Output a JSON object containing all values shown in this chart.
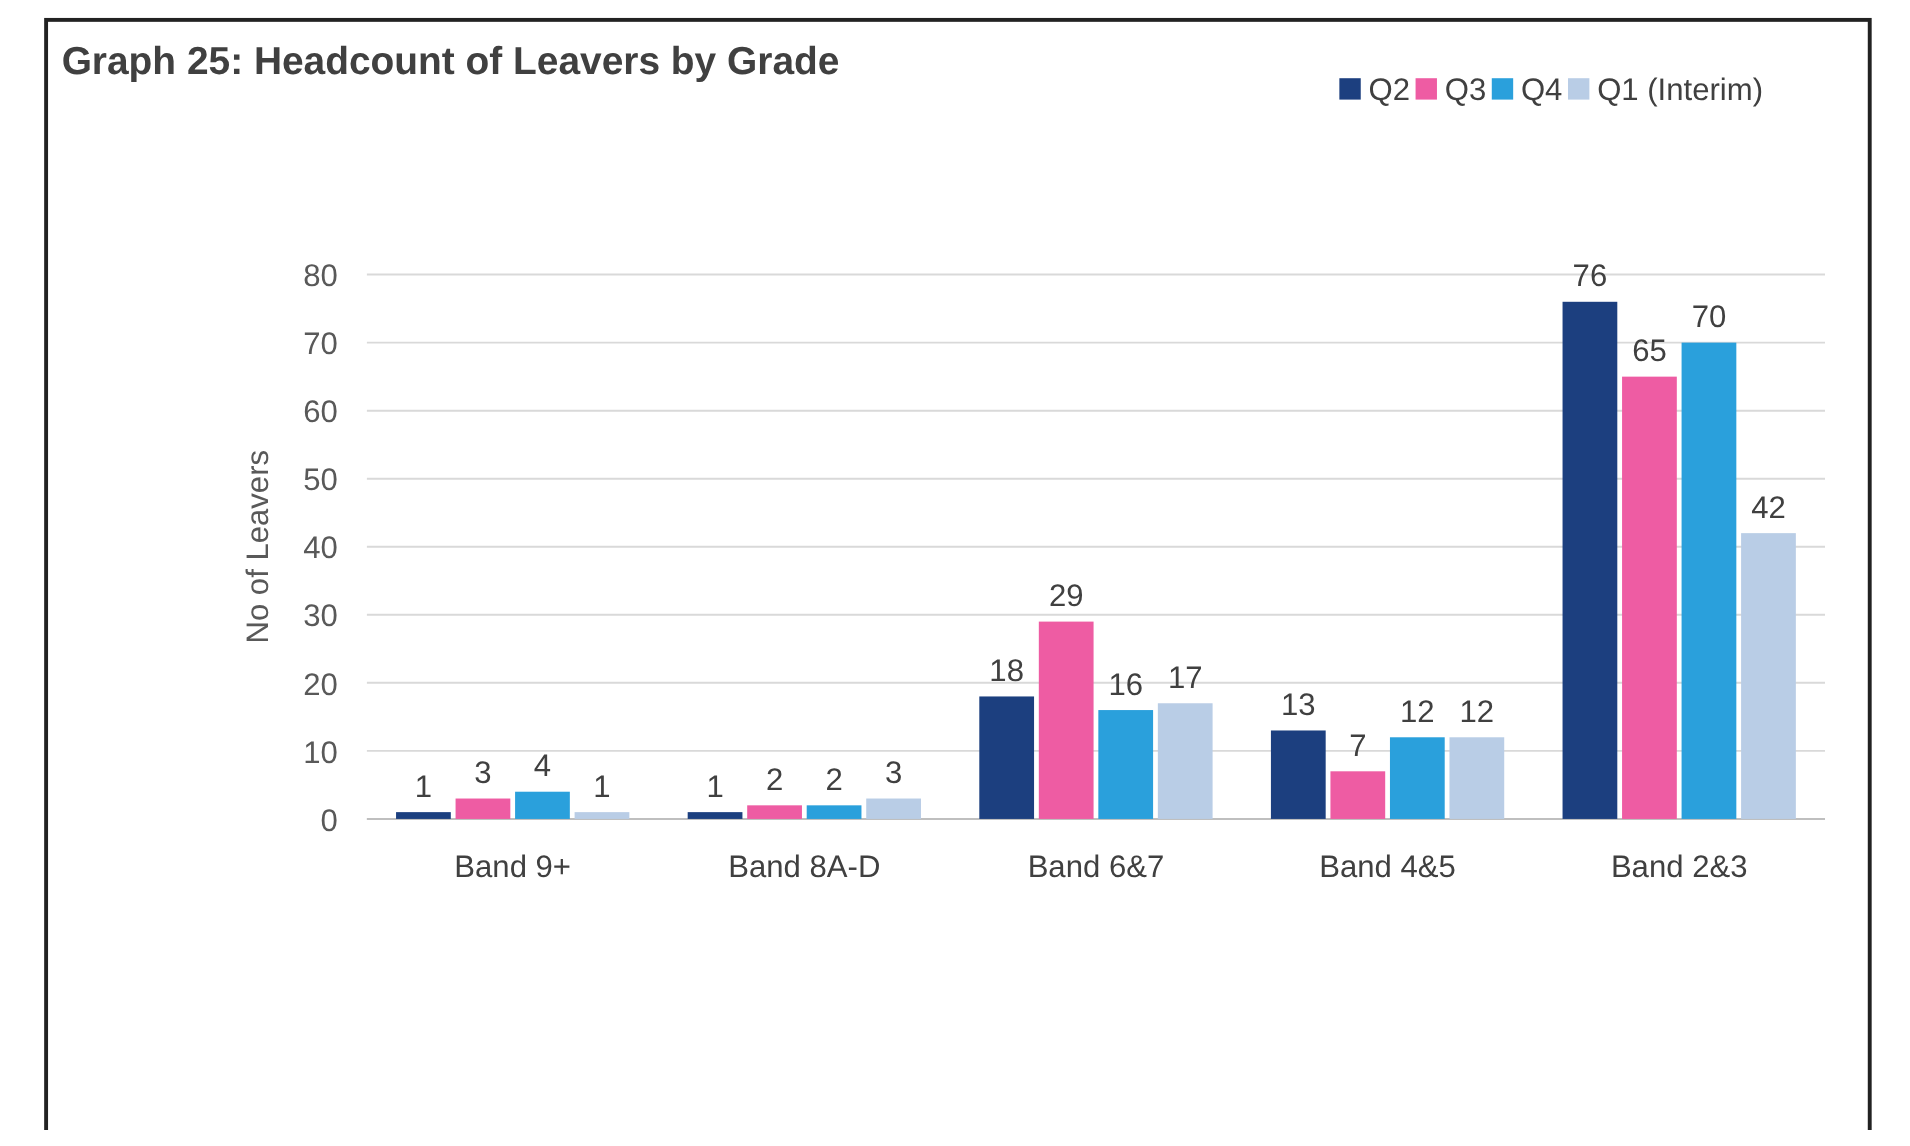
{
  "chart_data": {
    "type": "bar",
    "title": "Graph 25: Headcount of Leavers by Grade",
    "ylabel": "No of Leavers",
    "categories": [
      "Band 9+",
      "Band 8A-D",
      "Band 6&7",
      "Band 4&5",
      "Band 2&3"
    ],
    "series": [
      {
        "name": "Q2",
        "color": "#1c3f7f",
        "values": [
          1,
          1,
          18,
          13,
          76
        ]
      },
      {
        "name": "Q3",
        "color": "#ee5ca3",
        "values": [
          3,
          2,
          29,
          7,
          65
        ]
      },
      {
        "name": "Q4",
        "color": "#2aa0dc",
        "values": [
          4,
          2,
          16,
          12,
          70
        ]
      },
      {
        "name": "Q1 (Interim)",
        "color": "#b9cde6",
        "values": [
          1,
          3,
          17,
          12,
          42
        ]
      }
    ],
    "ylim": [
      0,
      80
    ],
    "yticks": [
      0,
      10,
      20,
      30,
      40,
      50,
      60,
      70,
      80
    ],
    "grid": "y",
    "legend": "top right",
    "data_labels": true
  }
}
